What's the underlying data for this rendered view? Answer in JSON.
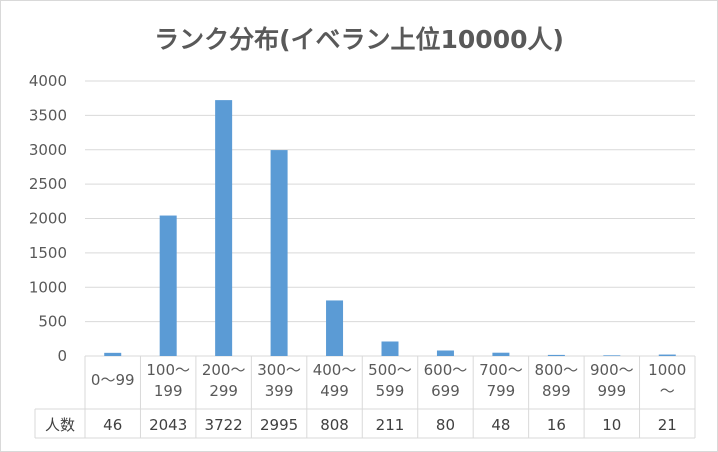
{
  "chart_data": {
    "type": "bar",
    "title": "ランク分布(イベラン上位10000人)",
    "categories": [
      [
        "0～99"
      ],
      [
        "100～",
        "199"
      ],
      [
        "200～",
        "299"
      ],
      [
        "300～",
        "399"
      ],
      [
        "400～",
        "499"
      ],
      [
        "500～",
        "599"
      ],
      [
        "600～",
        "699"
      ],
      [
        "700～",
        "799"
      ],
      [
        "800～",
        "899"
      ],
      [
        "900～",
        "999"
      ],
      [
        "1000",
        "～"
      ]
    ],
    "series": [
      {
        "name": "人数",
        "values": [
          46,
          2043,
          3722,
          2995,
          808,
          211,
          80,
          48,
          16,
          10,
          21
        ]
      }
    ],
    "ylim": [
      0,
      4000
    ],
    "yticks": [
      0,
      500,
      1000,
      1500,
      2000,
      2500,
      3000,
      3500,
      4000
    ],
    "grid": true,
    "legend": "none",
    "data_table": true,
    "bar_color": "#5b9bd5"
  }
}
